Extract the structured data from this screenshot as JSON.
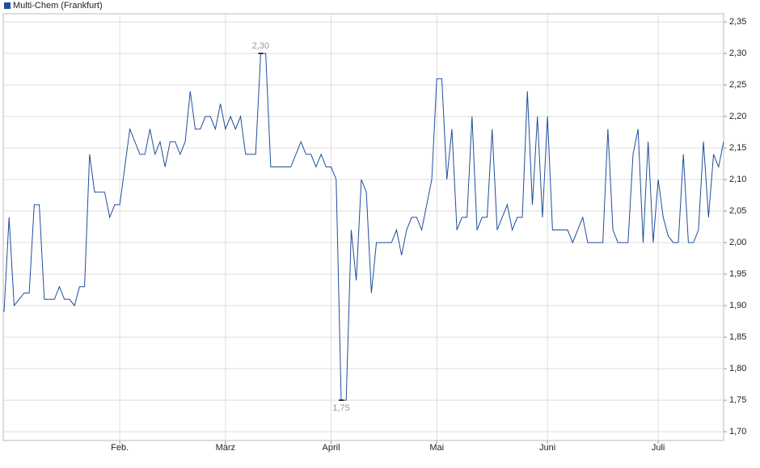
{
  "chart_data": {
    "type": "line",
    "legend": "Multi-Chem (Frankfurt)",
    "color": "#1f4e9c",
    "grid": true,
    "categories": [
      null,
      null,
      null,
      null,
      null,
      null,
      null,
      null,
      null,
      null,
      null,
      null,
      null,
      null,
      null,
      null,
      null,
      null,
      null,
      null,
      null,
      null,
      null,
      "Feb.",
      null,
      null,
      null,
      null,
      null,
      null,
      null,
      null,
      null,
      null,
      null,
      null,
      null,
      null,
      null,
      null,
      null,
      null,
      null,
      null,
      "März",
      null,
      null,
      null,
      null,
      null,
      null,
      null,
      null,
      null,
      null,
      null,
      null,
      null,
      null,
      null,
      null,
      null,
      null,
      null,
      null,
      "April",
      null,
      null,
      null,
      null,
      null,
      null,
      null,
      null,
      null,
      null,
      null,
      null,
      null,
      null,
      null,
      null,
      null,
      null,
      null,
      null,
      "Mai",
      null,
      null,
      null,
      null,
      null,
      null,
      null,
      null,
      null,
      null,
      null,
      null,
      null,
      null,
      null,
      null,
      null,
      null,
      null,
      null,
      null,
      "Juni",
      null,
      null,
      null,
      null,
      null,
      null,
      null,
      null,
      null,
      null,
      null,
      null,
      null,
      null,
      null,
      null,
      null,
      null,
      null,
      null,
      null,
      "Juli",
      null,
      null,
      null,
      null,
      null,
      null,
      null,
      null,
      null,
      null,
      null,
      null,
      null
    ],
    "values": [
      1.89,
      2.04,
      1.9,
      1.91,
      1.92,
      1.92,
      2.06,
      2.06,
      1.91,
      1.91,
      1.91,
      1.93,
      1.91,
      1.91,
      1.9,
      1.93,
      1.93,
      2.14,
      2.08,
      2.08,
      2.08,
      2.04,
      2.06,
      2.06,
      2.12,
      2.18,
      2.16,
      2.14,
      2.14,
      2.18,
      2.14,
      2.16,
      2.12,
      2.16,
      2.16,
      2.14,
      2.16,
      2.24,
      2.18,
      2.18,
      2.2,
      2.2,
      2.18,
      2.22,
      2.18,
      2.2,
      2.18,
      2.2,
      2.14,
      2.14,
      2.14,
      2.3,
      2.3,
      2.12,
      2.12,
      2.12,
      2.12,
      2.12,
      2.14,
      2.16,
      2.14,
      2.14,
      2.12,
      2.14,
      2.12,
      2.12,
      2.1,
      1.75,
      1.75,
      2.02,
      1.94,
      2.1,
      2.08,
      1.92,
      2.0,
      2.0,
      2.0,
      2.0,
      2.02,
      1.98,
      2.02,
      2.04,
      2.04,
      2.02,
      2.06,
      2.1,
      2.26,
      2.26,
      2.1,
      2.18,
      2.02,
      2.04,
      2.04,
      2.2,
      2.02,
      2.04,
      2.04,
      2.18,
      2.02,
      2.04,
      2.06,
      2.02,
      2.04,
      2.04,
      2.24,
      2.06,
      2.2,
      2.04,
      2.2,
      2.02,
      2.02,
      2.02,
      2.02,
      2.0,
      2.02,
      2.04,
      2.0,
      2.0,
      2.0,
      2.0,
      2.18,
      2.02,
      2.0,
      2.0,
      2.0,
      2.14,
      2.18,
      2.0,
      2.16,
      2.0,
      2.1,
      2.04,
      2.01,
      2.0,
      2.0,
      2.14,
      2.0,
      2.0,
      2.02,
      2.16,
      2.04,
      2.14,
      2.12,
      2.16
    ],
    "value_labels": [
      null,
      null,
      null,
      null,
      null,
      null,
      null,
      null,
      null,
      null,
      null,
      null,
      null,
      null,
      null,
      null,
      null,
      null,
      null,
      null,
      null,
      null,
      null,
      null,
      null,
      null,
      null,
      null,
      null,
      null,
      null,
      null,
      null,
      null,
      null,
      null,
      null,
      null,
      null,
      null,
      null,
      null,
      null,
      null,
      null,
      null,
      null,
      null,
      null,
      null,
      null,
      "2,30",
      null,
      null,
      null,
      null,
      null,
      null,
      null,
      null,
      null,
      null,
      null,
      null,
      null,
      null,
      null,
      "1,75",
      null,
      null,
      null,
      null,
      null,
      null,
      null,
      null,
      null,
      null,
      null,
      null,
      null,
      null,
      null,
      null,
      null,
      null,
      null,
      null,
      null,
      null,
      null,
      null,
      null,
      null,
      null,
      null,
      null,
      null,
      null,
      null,
      null,
      null,
      null,
      null,
      null,
      null,
      null,
      null,
      null,
      null,
      null,
      null,
      null,
      null,
      null,
      null,
      null,
      null,
      null,
      null,
      null,
      null,
      null,
      null,
      null,
      null,
      null,
      null,
      null,
      null,
      null,
      null,
      null,
      null,
      null,
      null,
      null,
      null,
      null,
      null,
      null,
      null,
      null,
      null
    ],
    "ylim": [
      1.686,
      2.363
    ],
    "yticks": [
      {
        "value": 1.7,
        "label": "1,70"
      },
      {
        "value": 1.75,
        "label": "1,75"
      },
      {
        "value": 1.8,
        "label": "1,80"
      },
      {
        "value": 1.85,
        "label": "1,85"
      },
      {
        "value": 1.9,
        "label": "1,90"
      },
      {
        "value": 1.95,
        "label": "1,95"
      },
      {
        "value": 2.0,
        "label": "2,00"
      },
      {
        "value": 2.05,
        "label": "2,05"
      },
      {
        "value": 2.1,
        "label": "2,10"
      },
      {
        "value": 2.15,
        "label": "2,15"
      },
      {
        "value": 2.2,
        "label": "2,20"
      },
      {
        "value": 2.25,
        "label": "2,25"
      },
      {
        "value": 2.3,
        "label": "2,30"
      },
      {
        "value": 2.35,
        "label": "2,35"
      }
    ]
  }
}
